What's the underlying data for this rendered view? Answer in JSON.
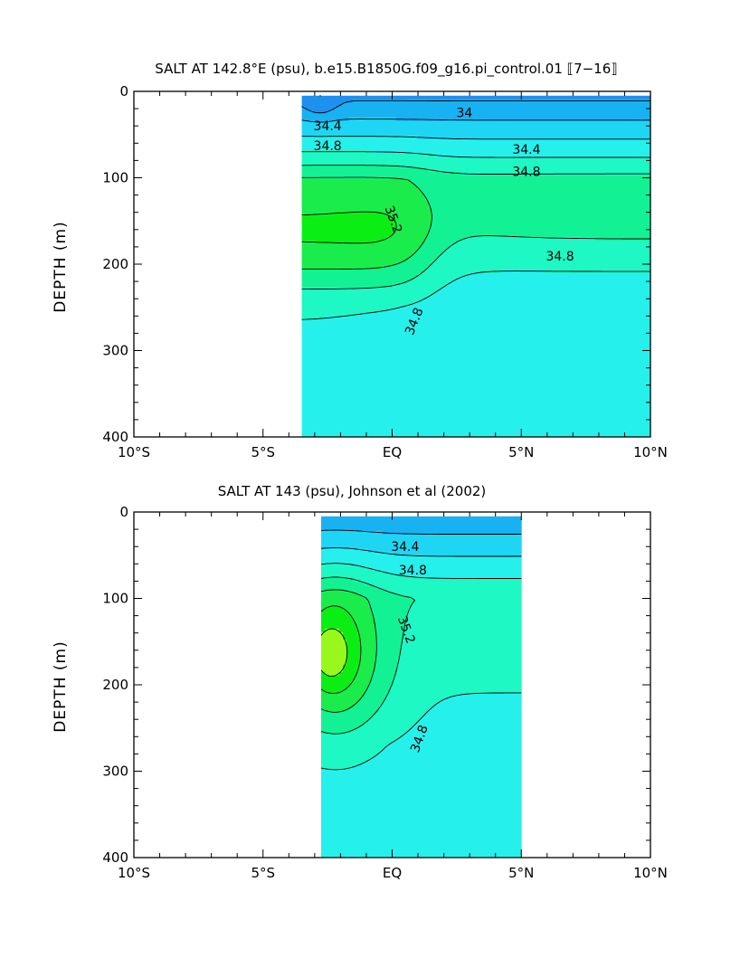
{
  "chart_data": [
    {
      "type": "heatmap",
      "subtype": "filled-contour",
      "title": "SALT AT 142.8°E (psu), b.e15.B1850G.f09_g16.pi_control.01 ⟦7−16⟧",
      "xlabel": "",
      "ylabel": "DEPTH (m)",
      "x_ticks": [
        "10°S",
        "5°S",
        "EQ",
        "5°N",
        "10°N"
      ],
      "x_tick_values": [
        -10,
        -5,
        0,
        5,
        10
      ],
      "y_ticks": [
        "0",
        "100",
        "200",
        "300",
        "400"
      ],
      "y_tick_values": [
        0,
        100,
        200,
        300,
        400
      ],
      "xlim": [
        -10,
        10
      ],
      "ylim": [
        400,
        0
      ],
      "data_extent": {
        "lat": [
          -3.5,
          10
        ],
        "depth": [
          5,
          400
        ]
      },
      "contour_labels": [
        "34",
        "34.4",
        "34.4",
        "34.8",
        "34.8",
        "35.2",
        "34.8",
        "34.8"
      ],
      "levels": [
        33.6,
        34.0,
        34.2,
        34.4,
        34.6,
        34.8,
        35.0,
        35.2,
        35.4
      ],
      "max_value": 35.25,
      "grid": false,
      "legend": "none"
    },
    {
      "type": "heatmap",
      "subtype": "filled-contour",
      "title": "SALT AT 143 (psu), Johnson et al (2002)",
      "xlabel": "",
      "ylabel": "DEPTH (m)",
      "x_ticks": [
        "10°S",
        "5°S",
        "EQ",
        "5°N",
        "10°N"
      ],
      "x_tick_values": [
        -10,
        -5,
        0,
        5,
        10
      ],
      "y_ticks": [
        "0",
        "100",
        "200",
        "300",
        "400"
      ],
      "y_tick_values": [
        0,
        100,
        200,
        300,
        400
      ],
      "xlim": [
        -10,
        10
      ],
      "ylim": [
        400,
        0
      ],
      "data_extent": {
        "lat": [
          -2.75,
          5
        ],
        "depth": [
          5,
          400
        ]
      },
      "contour_labels": [
        "34.4",
        "34.8",
        "35.2",
        "34.8"
      ],
      "levels": [
        33.6,
        34.0,
        34.2,
        34.4,
        34.6,
        34.8,
        35.0,
        35.2,
        35.4
      ],
      "max_value": 35.45,
      "grid": false,
      "legend": "none"
    }
  ],
  "colors": {
    "levels": [
      {
        "min": 33.4,
        "max": 33.6,
        "color": "#1f4fe0"
      },
      {
        "min": 33.6,
        "max": 34.0,
        "color": "#1e90f0"
      },
      {
        "min": 34.0,
        "max": 34.2,
        "color": "#18b2f2"
      },
      {
        "min": 34.2,
        "max": 34.4,
        "color": "#1ed6f4"
      },
      {
        "min": 34.4,
        "max": 34.6,
        "color": "#26f0ec"
      },
      {
        "min": 34.6,
        "max": 34.8,
        "color": "#1ef8c4"
      },
      {
        "min": 34.8,
        "max": 35.0,
        "color": "#12f294"
      },
      {
        "min": 35.0,
        "max": 35.2,
        "color": "#1aec4c"
      },
      {
        "min": 35.2,
        "max": 35.4,
        "color": "#0aee14"
      },
      {
        "min": 35.4,
        "max": 35.6,
        "color": "#98f81c"
      }
    ],
    "contour_line": "#000000"
  }
}
